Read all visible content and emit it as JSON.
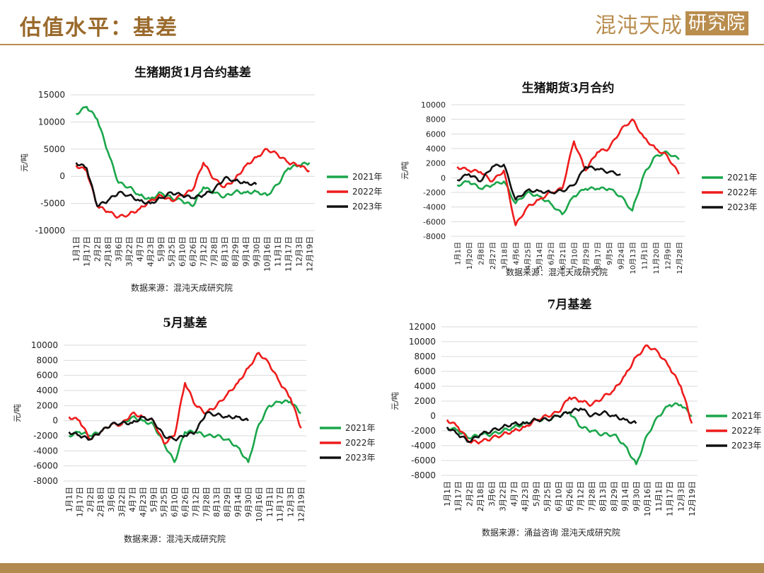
{
  "page": {
    "title": "估值水平：基差",
    "logo_text": "混沌天成",
    "logo_tag": "研究院"
  },
  "colors": {
    "s2021": "#1aa64a",
    "s2022": "#ee1c1c",
    "s2023": "#111111",
    "gold": "#b98d4e"
  },
  "chart_data": [
    {
      "type": "line",
      "title": "生猪期货1月合约基差",
      "ylabel": "元/吨",
      "source": "数据来源：混沌天成研究院",
      "ylim": [
        -10000,
        15000
      ],
      "yticks": [
        -10000,
        -5000,
        0,
        5000,
        10000,
        15000
      ],
      "ytick_labels": [
        "-10000",
        "-5000",
        "0",
        "5000",
        "10000",
        "15000"
      ],
      "x_labels": [
        "1月1日",
        "1月17日",
        "2月2日",
        "2月18日",
        "3月6日",
        "3月22日",
        "4月7日",
        "4月23日",
        "5月9日",
        "5月25日",
        "6月10日",
        "6月26日",
        "7月12日",
        "7月28日",
        "8月13日",
        "8月29日",
        "9月14日",
        "9月30日",
        "10月16日",
        "11月1日",
        "11月17日",
        "12月3日",
        "12月19日"
      ],
      "series": [
        {
          "name": "2021年",
          "values": [
            11500,
            12800,
            10500,
            4500,
            -1200,
            -2000,
            -3500,
            -4200,
            -3000,
            -4000,
            -4500,
            -5500,
            -2000,
            -3000,
            -3800,
            -2800,
            -3000,
            -2800,
            -3500,
            -1500,
            1500,
            2000,
            2500
          ]
        },
        {
          "name": "2022年",
          "values": [
            2000,
            1000,
            -5500,
            -6500,
            -7500,
            -7000,
            -6000,
            -4500,
            -3500,
            -4500,
            -3500,
            -2500,
            2500,
            -500,
            -2000,
            -500,
            2000,
            3500,
            5000,
            4000,
            2500,
            2000,
            1000
          ]
        },
        {
          "name": "2023年",
          "values": [
            2500,
            1500,
            -5500,
            -4500,
            -3000,
            -3500,
            -4500,
            -5000,
            -4000,
            -3000,
            -3500,
            -4000,
            -3500,
            -2500,
            -300,
            -800,
            -1200,
            -1500,
            null,
            null,
            null,
            null,
            null
          ]
        }
      ]
    },
    {
      "type": "line",
      "title": "生猪期货3月合约",
      "ylabel": "元/吨",
      "source": "数据来源：混沌天成研究院",
      "ylim": [
        -8000,
        10000
      ],
      "yticks": [
        -8000,
        -6000,
        -4000,
        -2000,
        0,
        2000,
        4000,
        6000,
        8000,
        10000
      ],
      "ytick_labels": [
        "-8000",
        "-6000",
        "-4000",
        "-2000",
        "0",
        "2000",
        "4000",
        "6000",
        "8000",
        "10000"
      ],
      "x_labels": [
        "1月1日",
        "1月20日",
        "2月8日",
        "2月27日",
        "3月18日",
        "4月6日",
        "4月25日",
        "5月14日",
        "6月2日",
        "6月21日",
        "7月10日",
        "7月29日",
        "8月17日",
        "9月5日",
        "9月24日",
        "10月13日",
        "11月1日",
        "11月20日",
        "12月9日",
        "12月28日"
      ],
      "series": [
        {
          "name": "2021年",
          "values": [
            -1000,
            -500,
            -1500,
            -1000,
            -500,
            -3500,
            -2000,
            -2500,
            -3500,
            -5000,
            -2500,
            -1500,
            -1500,
            -1500,
            -2500,
            -4500,
            500,
            3000,
            3500,
            2500
          ]
        },
        {
          "name": "2022年",
          "values": [
            1500,
            1000,
            800,
            -500,
            1000,
            -6500,
            -4000,
            -3000,
            -2000,
            -1500,
            5000,
            1000,
            3500,
            4000,
            6500,
            8000,
            5500,
            4000,
            3000,
            500
          ]
        },
        {
          "name": "2023年",
          "values": [
            -300,
            500,
            -500,
            1500,
            1800,
            -3000,
            -1700,
            -1800,
            -2000,
            -1800,
            -1000,
            1500,
            1200,
            800,
            500,
            null,
            null,
            null,
            null,
            null
          ]
        }
      ]
    },
    {
      "type": "line",
      "title": "5月基差",
      "ylabel": "元/吨",
      "source": "数据来源：混沌天成研究院",
      "ylim": [
        -8000,
        10000
      ],
      "yticks": [
        -8000,
        -6000,
        -4000,
        -2000,
        0,
        2000,
        4000,
        6000,
        8000,
        10000
      ],
      "ytick_labels": [
        "-8000",
        "-6000",
        "-4000",
        "-2000",
        "0",
        "2000",
        "4000",
        "6000",
        "8000",
        "10000"
      ],
      "x_labels": [
        "1月1日",
        "1月17日",
        "2月2日",
        "2月18日",
        "3月6日",
        "3月22日",
        "4月7日",
        "4月23日",
        "5月9日",
        "5月25日",
        "6月10日",
        "6月26日",
        "7月12日",
        "7月28日",
        "8月13日",
        "8月29日",
        "9月14日",
        "9月30日",
        "10月16日",
        "11月1日",
        "11月17日",
        "12月3日",
        "12月19日"
      ],
      "series": [
        {
          "name": "2021年",
          "values": [
            -2000,
            -1500,
            -2000,
            -1500,
            -500,
            -500,
            500,
            0,
            -500,
            -3000,
            -5500,
            -1500,
            -1500,
            -2000,
            -2000,
            -2500,
            -3500,
            -5500,
            -500,
            2000,
            2500,
            2500,
            1000
          ]
        },
        {
          "name": "2022年",
          "values": [
            500,
            0,
            -2500,
            -1500,
            -500,
            -500,
            1000,
            500,
            0,
            -3000,
            -2000,
            5000,
            2000,
            1000,
            2000,
            3500,
            5000,
            7000,
            9000,
            7500,
            5000,
            3000,
            -1000
          ]
        },
        {
          "name": "2023年",
          "values": [
            -1500,
            -2000,
            -2500,
            -1500,
            -500,
            -300,
            -300,
            500,
            0,
            -2000,
            -2500,
            -2000,
            -1500,
            1000,
            800,
            500,
            500,
            0,
            null,
            null,
            null,
            null,
            null
          ]
        }
      ]
    },
    {
      "type": "line",
      "title": "7月基差",
      "ylabel": "元/吨",
      "source": "数据来源：涌益咨询 混沌天成研究院",
      "ylim": [
        -8000,
        12000
      ],
      "yticks": [
        -8000,
        -6000,
        -4000,
        -2000,
        0,
        2000,
        4000,
        6000,
        8000,
        10000,
        12000
      ],
      "ytick_labels": [
        "-8000",
        "-6000",
        "-4000",
        "-2000",
        "0",
        "2000",
        "4000",
        "6000",
        "8000",
        "10000",
        "12000"
      ],
      "x_labels": [
        "1月1日",
        "1月17日",
        "2月2日",
        "2月18日",
        "3月6日",
        "3月22日",
        "4月7日",
        "4月23日",
        "5月9日",
        "5月25日",
        "6月10日",
        "6月26日",
        "7月12日",
        "7月28日",
        "8月13日",
        "8月29日",
        "9月14日",
        "9月30日",
        "10月16日",
        "11月1日",
        "11月17日",
        "12月3日",
        "12月19日"
      ],
      "series": [
        {
          "name": "2021年",
          "values": [
            -1500,
            -2000,
            -3000,
            -2500,
            -2500,
            -2000,
            -1500,
            -1000,
            -500,
            -500,
            0,
            500,
            -1500,
            -2000,
            -2500,
            -2500,
            -4000,
            -6500,
            -2500,
            0,
            1500,
            1500,
            0
          ]
        },
        {
          "name": "2022年",
          "values": [
            -500,
            -1500,
            -3500,
            -3500,
            -3000,
            -2500,
            -2000,
            -1500,
            -500,
            0,
            500,
            2500,
            2000,
            1500,
            2500,
            3500,
            5500,
            8000,
            9500,
            8500,
            6500,
            4000,
            -1000
          ]
        },
        {
          "name": "2023年",
          "values": [
            -1500,
            -2500,
            -3500,
            -2500,
            -2000,
            -1500,
            -1000,
            -1000,
            -500,
            -500,
            0,
            500,
            1000,
            0,
            500,
            0,
            -500,
            -1000,
            null,
            null,
            null,
            null,
            null
          ]
        }
      ]
    }
  ]
}
